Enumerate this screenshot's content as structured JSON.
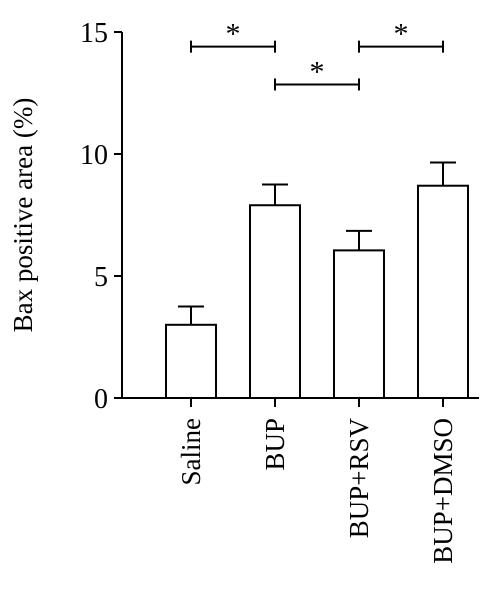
{
  "chart_data": {
    "type": "bar",
    "title": "",
    "xlabel": "",
    "ylabel": "Bax positive area (%)",
    "ylim": [
      0,
      15
    ],
    "yticks": [
      0,
      5,
      10,
      15
    ],
    "grid": false,
    "legend": "none",
    "categories": [
      "Saline",
      "BUP",
      "BUP+RSV",
      "BUP+DMSO"
    ],
    "values": [
      3.0,
      7.9,
      6.05,
      8.7
    ],
    "errors": [
      0.75,
      0.85,
      0.8,
      0.95
    ],
    "bar_fill": "#ffffff",
    "bar_stroke": "#000000",
    "significance": [
      {
        "from": "Saline",
        "to": "BUP",
        "label": "*",
        "y": 14.4
      },
      {
        "from": "BUP",
        "to": "BUP+RSV",
        "label": "*",
        "y": 12.85
      },
      {
        "from": "BUP+RSV",
        "to": "BUP+DMSO",
        "label": "*",
        "y": 14.4
      }
    ]
  }
}
